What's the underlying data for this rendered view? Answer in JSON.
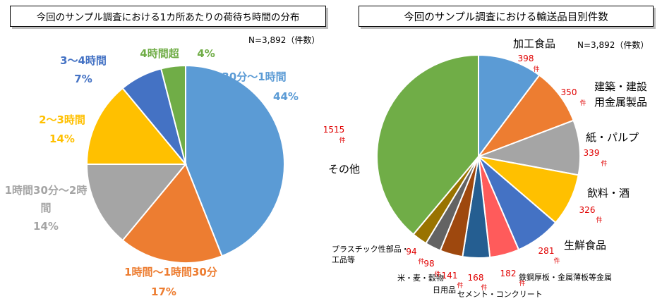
{
  "chart_data": [
    {
      "type": "pie",
      "title": "今回のサンプル調査における1カ所あたりの荷待ち時間の分布",
      "note": "N=3,892（件数）",
      "slices": [
        {
          "label": "30分～1時間",
          "value": 44,
          "display": "44%",
          "color": "#5B9BD5"
        },
        {
          "label": "1時間～1時間30分",
          "value": 17,
          "display": "17%",
          "color": "#ED7D31"
        },
        {
          "label": "1時間30分～2時間",
          "value": 14,
          "display": "14%",
          "color": "#A5A5A5"
        },
        {
          "label": "2～3時間",
          "value": 14,
          "display": "14%",
          "color": "#FFC000"
        },
        {
          "label": "3～4時間",
          "value": 7,
          "display": "7%",
          "color": "#4472C4"
        },
        {
          "label": "4時間超",
          "value": 4,
          "display": "4%",
          "color": "#70AD47"
        }
      ]
    },
    {
      "type": "pie",
      "title": "今回のサンプル調査における輸送品目別件数",
      "note": "N=3,892（件数）",
      "unit": "件",
      "slices": [
        {
          "label": "加工食品",
          "value": 398,
          "color": "#5B9BD5"
        },
        {
          "label": "建築・建設用金属製品",
          "value": 350,
          "color": "#ED7D31"
        },
        {
          "label": "紙・パルプ",
          "value": 339,
          "color": "#A5A5A5"
        },
        {
          "label": "飲料・酒",
          "value": 326,
          "color": "#FFC000"
        },
        {
          "label": "生鮮食品",
          "value": 281,
          "color": "#4472C4"
        },
        {
          "label": "鉄鋼厚板・金属薄板等金属",
          "value": 182,
          "color": "#FF5B5B"
        },
        {
          "label": "セメント・コンクリート",
          "value": 168,
          "color": "#255E91"
        },
        {
          "label": "日用品",
          "value": 141,
          "color": "#9E480E"
        },
        {
          "label": "米・麦・穀物",
          "value": 98,
          "color": "#636363"
        },
        {
          "label": "プラスチック性部品・加工品等",
          "value": 94,
          "color": "#997300"
        },
        {
          "label": "その他",
          "value": 1515,
          "color": "#70AD47"
        }
      ]
    }
  ]
}
